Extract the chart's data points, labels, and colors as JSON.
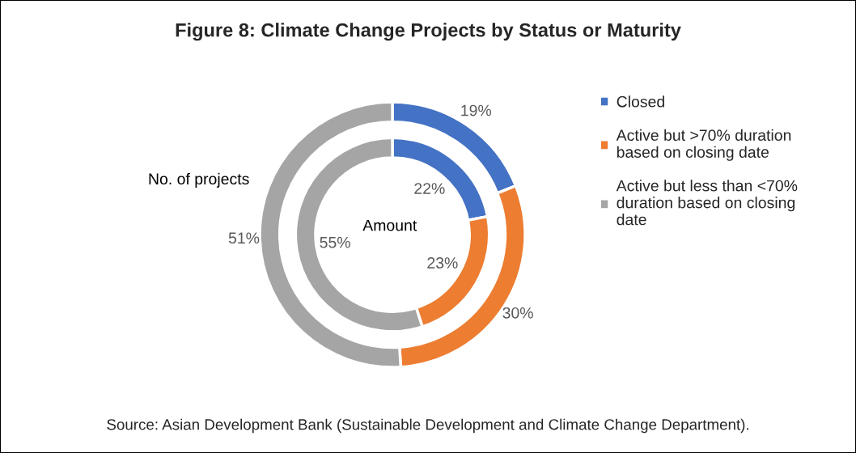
{
  "chart_data": {
    "type": "donut",
    "title": "Figure 8: Climate Change Projects by Status or Maturity",
    "categories": [
      "Closed",
      "Active but >70% duration based on closing date",
      "Active but less than <70% duration based on closing date"
    ],
    "colors": [
      "#4472c4",
      "#ed7d31",
      "#a5a5a5"
    ],
    "series": [
      {
        "name": "No. of projects",
        "values": [
          19,
          30,
          51
        ],
        "value_labels": [
          "19%",
          "30%",
          "51%"
        ]
      },
      {
        "name": "Amount",
        "values": [
          22,
          23,
          55
        ],
        "value_labels": [
          "22%",
          "23%",
          "55%"
        ]
      }
    ],
    "legend": "right",
    "annotations": [
      "Source: Asian Development Bank (Sustainable Development and Climate Change Department)."
    ]
  }
}
